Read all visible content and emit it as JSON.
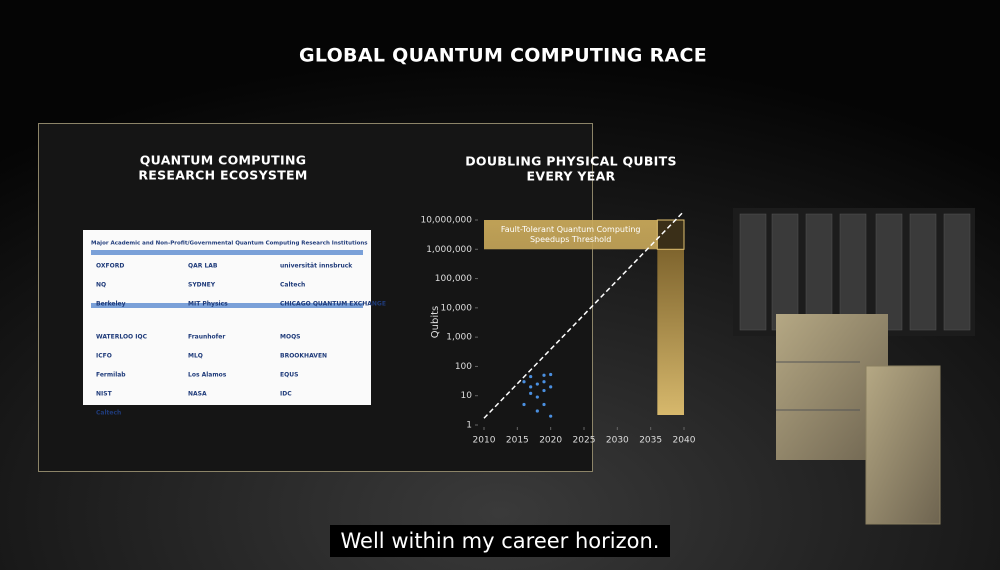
{
  "title": "GLOBAL QUANTUM COMPUTING RACE",
  "caption": "Well within my career horizon.",
  "ecosystem": {
    "title": [
      "QUANTUM COMPUTING",
      "RESEARCH ECOSYSTEM"
    ],
    "heading": "Major Academic and Non-Profit/Governmental Quantum Computing Research Institutions",
    "logos": [
      "OXFORD",
      "QAR LAB",
      "universität innsbruck",
      "NQ",
      "SYDNEY",
      "Caltech",
      "Berkeley",
      "MIT Physics",
      "CHICAGO QUANTUM EXCHANGE",
      "WATERLOO IQC",
      "Fraunhofer",
      "MOQS",
      "ICFO",
      "MLQ",
      "BROOKHAVEN",
      "Fermilab",
      "Los Alamos",
      "EQUS",
      "NIST",
      "NASA",
      "IDC",
      "Caltech"
    ]
  },
  "chart_data": {
    "type": "scatter",
    "title": [
      "DOUBLING PHYSICAL QUBITS",
      "EVERY YEAR"
    ],
    "ylabel": "Qubits",
    "log_y": true,
    "color": "#4a8fe0",
    "x": [
      2016,
      2017,
      2017,
      2018,
      2018,
      2019,
      2019,
      2019,
      2020,
      2020,
      2019,
      2018,
      2020,
      2017,
      2016
    ],
    "values": [
      5,
      12,
      20,
      25,
      9,
      30,
      50,
      15,
      53,
      20,
      5,
      3,
      2,
      45,
      30
    ],
    "trend": {
      "x": [
        2010,
        2040
      ],
      "values": [
        1.7,
        20000000
      ],
      "color": "#ffffff"
    },
    "threshold": {
      "label": [
        "Fault-Tolerant Quantum Computing",
        "Speedups Threshold"
      ],
      "ylim": [
        1000000,
        10000000
      ],
      "xlim": [
        2036,
        2040
      ]
    },
    "xlim": [
      2010,
      2040
    ],
    "xticks": [
      2010,
      2015,
      2020,
      2025,
      2030,
      2035,
      2040
    ],
    "ylim": [
      1,
      10000000
    ],
    "yticks": [
      1,
      10,
      100,
      {
        "value": 1000,
        "label": "1,000"
      },
      {
        "value": 10000,
        "label": "10,000"
      },
      {
        "value": 100000,
        "label": "100,000"
      },
      {
        "value": 1000000,
        "label": "1,000,000"
      },
      {
        "value": 10000000,
        "label": "10,000,000"
      }
    ]
  }
}
